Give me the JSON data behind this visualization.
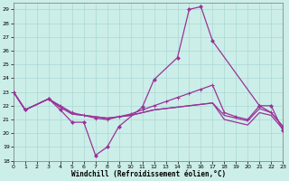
{
  "background_color": "#cceee8",
  "grid_color": "#aad8d4",
  "line_color": "#993399",
  "xlim": [
    0,
    23
  ],
  "ylim": [
    18,
    29.5
  ],
  "yticks": [
    18,
    19,
    20,
    21,
    22,
    23,
    24,
    25,
    26,
    27,
    28,
    29
  ],
  "xticks": [
    0,
    1,
    2,
    3,
    4,
    5,
    6,
    7,
    8,
    9,
    10,
    11,
    12,
    13,
    14,
    15,
    16,
    17,
    18,
    19,
    20,
    21,
    22,
    23
  ],
  "xlabel": "Windchill (Refroidissement éolien,°C)",
  "line_spiky": {
    "x": [
      0,
      1,
      3,
      4,
      5,
      6,
      7,
      8,
      9,
      11,
      12,
      14,
      15,
      16,
      17,
      21,
      22,
      23
    ],
    "y": [
      23.0,
      21.7,
      22.5,
      21.7,
      20.8,
      20.8,
      18.4,
      19.0,
      20.5,
      21.9,
      23.9,
      25.5,
      29.0,
      29.2,
      26.7,
      22.0,
      22.0,
      20.2
    ]
  },
  "line_diagonal": {
    "x": [
      0,
      1,
      3,
      4,
      5,
      6,
      7,
      8,
      9,
      10,
      11,
      12,
      13,
      14,
      15,
      16,
      17,
      18,
      19,
      20,
      21,
      22,
      23
    ],
    "y": [
      23.0,
      21.7,
      22.5,
      22.0,
      21.5,
      21.3,
      21.1,
      21.0,
      21.2,
      21.4,
      21.7,
      22.0,
      22.3,
      22.6,
      22.9,
      23.2,
      23.5,
      21.5,
      21.2,
      21.0,
      22.0,
      21.5,
      20.5
    ]
  },
  "line_flat1": {
    "x": [
      0,
      1,
      3,
      4,
      5,
      6,
      7,
      8,
      9,
      10,
      11,
      12,
      13,
      14,
      15,
      16,
      17,
      18,
      19,
      20,
      21,
      22,
      23
    ],
    "y": [
      23.0,
      21.7,
      22.5,
      21.9,
      21.4,
      21.3,
      21.2,
      21.1,
      21.2,
      21.3,
      21.5,
      21.7,
      21.8,
      21.9,
      22.0,
      22.1,
      22.2,
      21.3,
      21.1,
      20.9,
      21.8,
      21.5,
      20.5
    ]
  },
  "line_flat2": {
    "x": [
      0,
      1,
      3,
      4,
      5,
      6,
      7,
      8,
      9,
      10,
      11,
      12,
      13,
      14,
      15,
      16,
      17,
      18,
      19,
      20,
      21,
      22,
      23
    ],
    "y": [
      23.0,
      21.7,
      22.5,
      21.9,
      21.4,
      21.3,
      21.2,
      21.1,
      21.2,
      21.3,
      21.5,
      21.7,
      21.8,
      21.9,
      22.0,
      22.1,
      22.2,
      21.0,
      20.8,
      20.6,
      21.5,
      21.3,
      20.3
    ]
  }
}
